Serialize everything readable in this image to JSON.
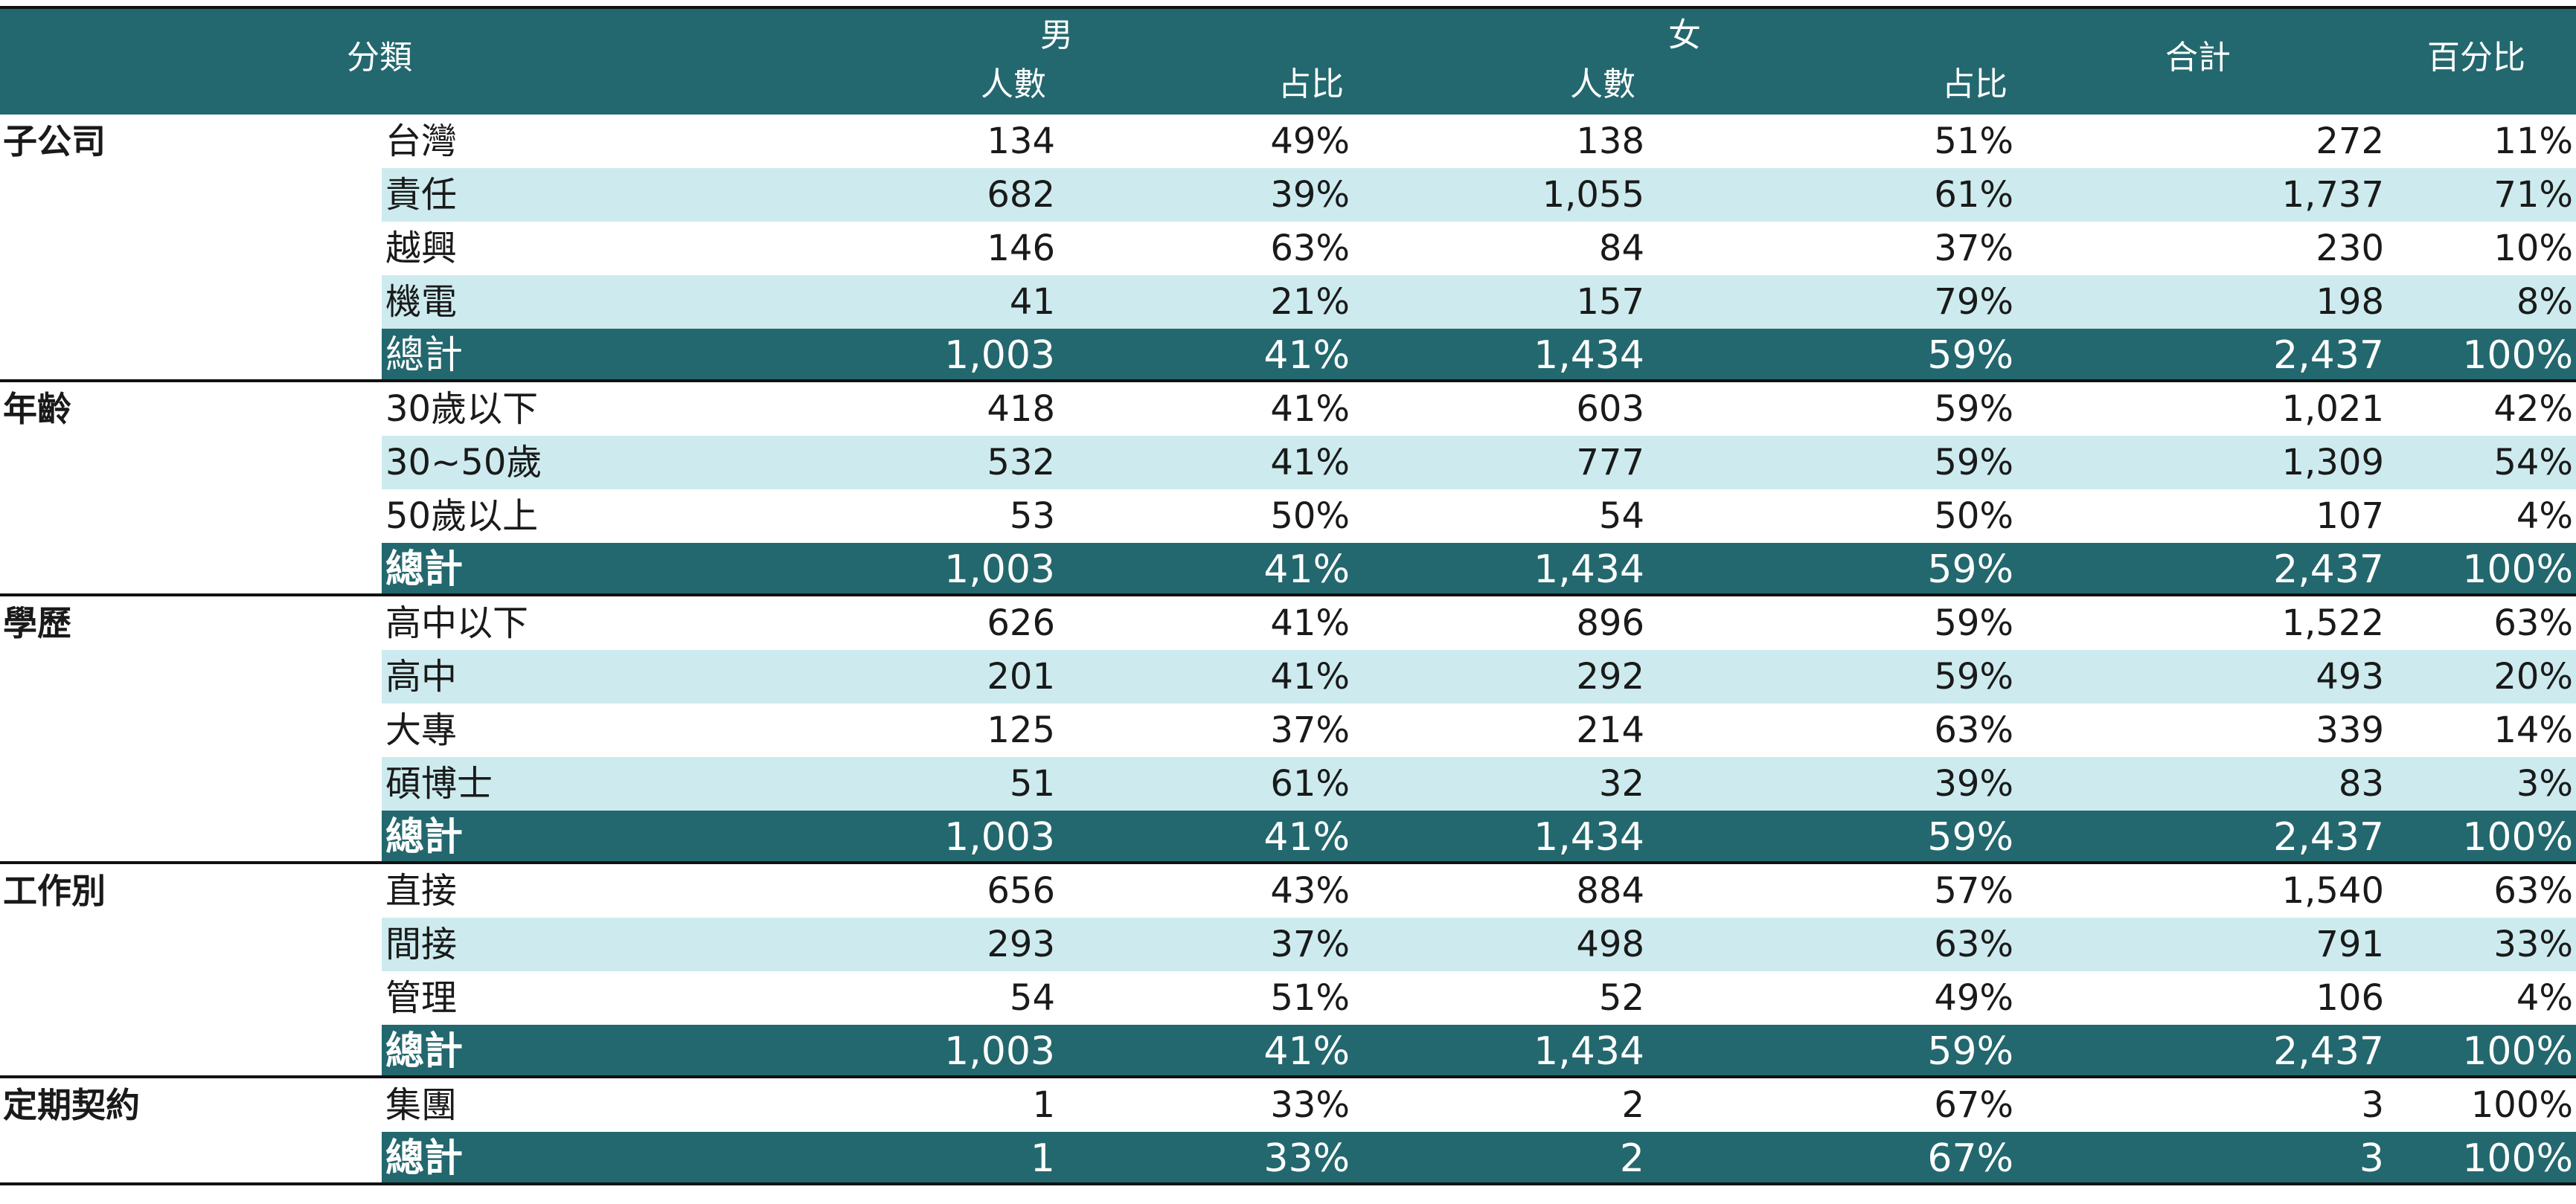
{
  "header": {
    "category": "分類",
    "male": "男",
    "female": "女",
    "count": "人數",
    "ratio": "占比",
    "total": "合計",
    "percent": "百分比"
  },
  "groups": [
    {
      "name": "子公司",
      "rows": [
        {
          "label": "台灣",
          "m": "134",
          "mp": "49%",
          "f": "138",
          "fp": "51%",
          "t": "272",
          "p": "11%"
        },
        {
          "label": "責任",
          "m": "682",
          "mp": "39%",
          "f": "1,055",
          "fp": "61%",
          "t": "1,737",
          "p": "71%"
        },
        {
          "label": "越興",
          "m": "146",
          "mp": "63%",
          "f": "84",
          "fp": "37%",
          "t": "230",
          "p": "10%"
        },
        {
          "label": "機電",
          "m": "41",
          "mp": "21%",
          "f": "157",
          "fp": "79%",
          "t": "198",
          "p": "8%"
        }
      ],
      "total": {
        "label": "總計",
        "m": "1,003",
        "mp": "41%",
        "f": "1,434",
        "fp": "59%",
        "t": "2,437",
        "p": "100%"
      },
      "bold_total": false
    },
    {
      "name": "年齡",
      "rows": [
        {
          "label": "30歲以下",
          "m": "418",
          "mp": "41%",
          "f": "603",
          "fp": "59%",
          "t": "1,021",
          "p": "42%"
        },
        {
          "label": "30~50歲",
          "m": "532",
          "mp": "41%",
          "f": "777",
          "fp": "59%",
          "t": "1,309",
          "p": "54%"
        },
        {
          "label": "50歲以上",
          "m": "53",
          "mp": "50%",
          "f": "54",
          "fp": "50%",
          "t": "107",
          "p": "4%"
        }
      ],
      "total": {
        "label": "總計",
        "m": "1,003",
        "mp": "41%",
        "f": "1,434",
        "fp": "59%",
        "t": "2,437",
        "p": "100%"
      },
      "bold_total": true
    },
    {
      "name": "學歷",
      "rows": [
        {
          "label": "高中以下",
          "m": "626",
          "mp": "41%",
          "f": "896",
          "fp": "59%",
          "t": "1,522",
          "p": "63%"
        },
        {
          "label": "高中",
          "m": "201",
          "mp": "41%",
          "f": "292",
          "fp": "59%",
          "t": "493",
          "p": "20%"
        },
        {
          "label": "大專",
          "m": "125",
          "mp": "37%",
          "f": "214",
          "fp": "63%",
          "t": "339",
          "p": "14%"
        },
        {
          "label": "碩博士",
          "m": "51",
          "mp": "61%",
          "f": "32",
          "fp": "39%",
          "t": "83",
          "p": "3%"
        }
      ],
      "total": {
        "label": "總計",
        "m": "1,003",
        "mp": "41%",
        "f": "1,434",
        "fp": "59%",
        "t": "2,437",
        "p": "100%"
      },
      "bold_total": true
    },
    {
      "name": "工作別",
      "rows": [
        {
          "label": "直接",
          "m": "656",
          "mp": "43%",
          "f": "884",
          "fp": "57%",
          "t": "1,540",
          "p": "63%"
        },
        {
          "label": "間接",
          "m": "293",
          "mp": "37%",
          "f": "498",
          "fp": "63%",
          "t": "791",
          "p": "33%"
        },
        {
          "label": "管理",
          "m": "54",
          "mp": "51%",
          "f": "52",
          "fp": "49%",
          "t": "106",
          "p": "4%"
        }
      ],
      "total": {
        "label": "總計",
        "m": "1,003",
        "mp": "41%",
        "f": "1,434",
        "fp": "59%",
        "t": "2,437",
        "p": "100%"
      },
      "bold_total": true
    },
    {
      "name": "定期契約",
      "rows": [
        {
          "label": "集團",
          "m": "1",
          "mp": "33%",
          "f": "2",
          "fp": "67%",
          "t": "3",
          "p": "100%"
        }
      ],
      "total": {
        "label": "總計",
        "m": "1",
        "mp": "33%",
        "f": "2",
        "fp": "67%",
        "t": "3",
        "p": "100%"
      },
      "bold_total": true
    }
  ]
}
